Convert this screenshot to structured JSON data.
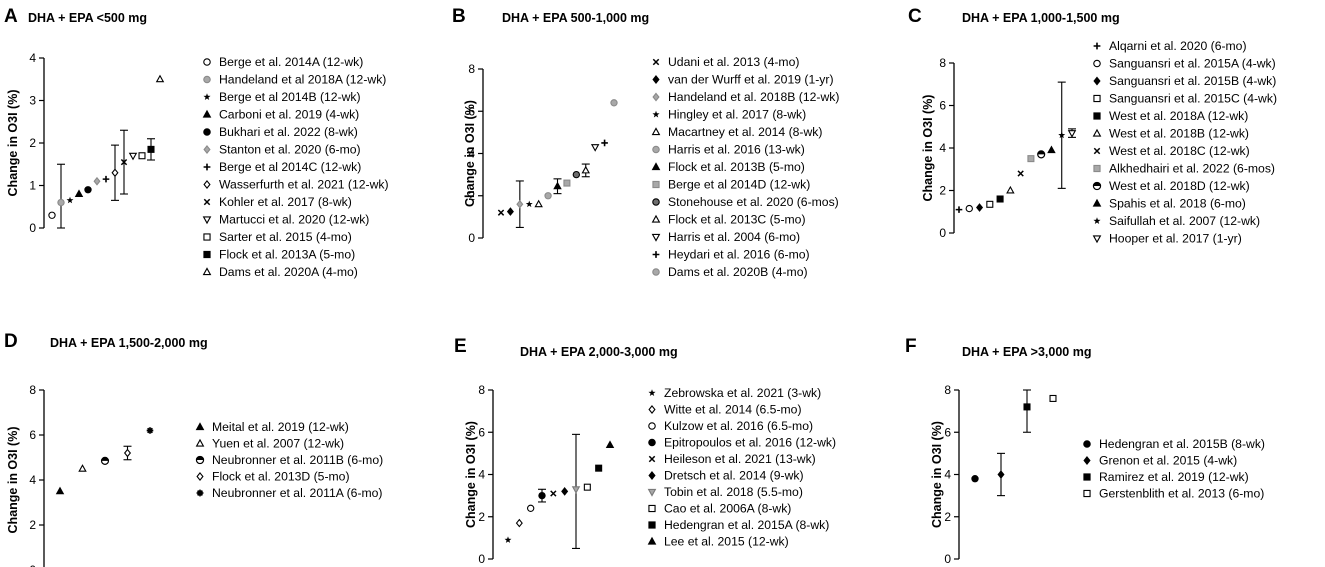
{
  "figure_domain": "forest-style scatter panels of omega-3 index change",
  "chart_data": [
    {
      "type": "scatter",
      "panel": "A",
      "title": "DHA + EPA <500 mg",
      "xlabel": "",
      "ylabel": "Change in O3I (%)",
      "ylim": [
        0,
        4
      ],
      "yticks": [
        0,
        1,
        2,
        3,
        4
      ],
      "legend_position": "right",
      "points": [
        {
          "label": "Berge et al. 2014A (12-wk)",
          "marker": "circle-open",
          "value": 0.3
        },
        {
          "label": "Handeland et al 2018A (12-wk)",
          "marker": "circle-gray",
          "value": 0.6,
          "error": [
            0.0,
            1.5
          ]
        },
        {
          "label": "Berge et al 2014B (12-wk)",
          "marker": "star",
          "value": 0.65
        },
        {
          "label": "Carboni et al. 2019 (4-wk)",
          "marker": "triangle",
          "value": 0.8
        },
        {
          "label": "Bukhari et al. 2022 (8-wk)",
          "marker": "circle",
          "value": 0.9
        },
        {
          "label": "Stanton et al. 2020 (6-mo)",
          "marker": "diamond-gray",
          "value": 1.1
        },
        {
          "label": "Berge et al 2014C (12-wk)",
          "marker": "plus",
          "value": 1.15
        },
        {
          "label": "Wasserfurth et al. 2021 (12-wk)",
          "marker": "diamond-open",
          "value": 1.3,
          "error": [
            0.65,
            1.95
          ]
        },
        {
          "label": "Kohler et al. 2017 (8-wk)",
          "marker": "x",
          "value": 1.55,
          "error": [
            0.8,
            2.3
          ]
        },
        {
          "label": "Martucci et al. 2020 (12-wk)",
          "marker": "triangle-down-open",
          "value": 1.7
        },
        {
          "label": "Sarter et al. 2015 (4-mo)",
          "marker": "square-open",
          "value": 1.7
        },
        {
          "label": "Flock et al. 2013A (5-mo)",
          "marker": "square",
          "value": 1.85,
          "error": [
            1.6,
            2.1
          ]
        },
        {
          "label": "Dams et al. 2020A (4-mo)",
          "marker": "triangle-open",
          "value": 3.5
        }
      ]
    },
    {
      "type": "scatter",
      "panel": "B",
      "title": "DHA + EPA 500-1,000 mg",
      "xlabel": "",
      "ylabel": "Change in O3I (%)",
      "ylim": [
        0,
        8
      ],
      "yticks": [
        0,
        2,
        4,
        6,
        8
      ],
      "legend_position": "right",
      "points": [
        {
          "label": "Udani et al. 2013 (4-mo)",
          "marker": "x",
          "value": 1.2
        },
        {
          "label": "van der Wurff et al. 2019 (1-yr)",
          "marker": "diamond",
          "value": 1.25
        },
        {
          "label": "Handeland et al. 2018B (12-wk)",
          "marker": "diamond-gray",
          "value": 1.6,
          "error": [
            0.5,
            2.7
          ]
        },
        {
          "label": "Hingley et al. 2017 (8-wk)",
          "marker": "star",
          "value": 1.6
        },
        {
          "label": "Macartney et al. 2014 (8-wk)",
          "marker": "triangle-open",
          "value": 1.6
        },
        {
          "label": "Harris et al. 2016 (13-wk)",
          "marker": "circle-gray",
          "value": 2.0
        },
        {
          "label": "Flock et al. 2013B (5-mo)",
          "marker": "triangle",
          "value": 2.45,
          "error": [
            2.1,
            2.8
          ]
        },
        {
          "label": "Berge et al 2014D (12-wk)",
          "marker": "square-gray",
          "value": 2.6
        },
        {
          "label": "Stonehouse et al. 2020 (6-mos)",
          "marker": "circle-darkgray",
          "value": 3.0
        },
        {
          "label": "Flock et al. 2013C (5-mo)",
          "marker": "triangle-open",
          "value": 3.2,
          "error": [
            2.9,
            3.5
          ]
        },
        {
          "label": "Harris et al. 2004 (6-mo)",
          "marker": "triangle-down-open",
          "value": 4.3
        },
        {
          "label": "Heydari et al. 2016 (6-mo)",
          "marker": "plus",
          "value": 4.5
        },
        {
          "label": "Dams et al. 2020B (4-mo)",
          "marker": "circle-gray",
          "value": 6.4
        }
      ]
    },
    {
      "type": "scatter",
      "panel": "C",
      "title": "DHA + EPA 1,000-1,500 mg",
      "xlabel": "",
      "ylabel": "Change in O3I (%)",
      "ylim": [
        0,
        8
      ],
      "yticks": [
        0,
        2,
        4,
        6,
        8
      ],
      "legend_position": "right",
      "points": [
        {
          "label": "Alqarni et al. 2020 (6-mo)",
          "marker": "plus",
          "value": 1.1
        },
        {
          "label": "Sanguansri et al. 2015A (4-wk)",
          "marker": "circle-open",
          "value": 1.15
        },
        {
          "label": "Sanguansri et al. 2015B (4-wk)",
          "marker": "diamond",
          "value": 1.2
        },
        {
          "label": "Sanguansri et al. 2015C (4-wk)",
          "marker": "square-open",
          "value": 1.35
        },
        {
          "label": "West et al. 2018A (12-wk)",
          "marker": "square",
          "value": 1.6
        },
        {
          "label": "West et al. 2018B (12-wk)",
          "marker": "triangle-open",
          "value": 2.0
        },
        {
          "label": "West et al. 2018C (12-wk)",
          "marker": "x",
          "value": 2.8
        },
        {
          "label": "Alkhedhairi et al. 2022 (6-mos)",
          "marker": "square-gray",
          "value": 3.5
        },
        {
          "label": "West et al. 2018D (12-wk)",
          "marker": "half-circle",
          "value": 3.7
        },
        {
          "label": "Spahis et al. 2018 (6-mo)",
          "marker": "triangle",
          "value": 3.9
        },
        {
          "label": "Saifullah et al. 2007 (12-wk)",
          "marker": "star",
          "value": 4.6,
          "error": [
            2.1,
            7.1
          ]
        },
        {
          "label": "Hooper et al. 2017 (1-yr)",
          "marker": "triangle-down-open",
          "value": 4.7,
          "error": [
            4.5,
            4.9
          ]
        }
      ]
    },
    {
      "type": "scatter",
      "panel": "D",
      "title": "DHA + EPA 1,500-2,000 mg",
      "xlabel": "",
      "ylabel": "Change in O3I (%)",
      "ylim": [
        0,
        8
      ],
      "yticks": [
        0,
        2,
        4,
        6,
        8
      ],
      "legend_position": "right",
      "points": [
        {
          "label": "Meital et al. 2019 (12-wk)",
          "marker": "triangle",
          "value": 3.5
        },
        {
          "label": "Yuen et al. 2007 (12-wk)",
          "marker": "triangle-open",
          "value": 4.5
        },
        {
          "label": "Neubronner et al. 2011B (6-mo)",
          "marker": "half-circle",
          "value": 4.85
        },
        {
          "label": "Flock et al. 2013D (5-mo)",
          "marker": "diamond-open",
          "value": 5.2,
          "error": [
            4.9,
            5.5
          ]
        },
        {
          "label": "Neubronner et al. 2011A (6-mo)",
          "marker": "asterisk",
          "value": 6.2
        }
      ]
    },
    {
      "type": "scatter",
      "panel": "E",
      "title": "DHA + EPA 2,000-3,000 mg",
      "xlabel": "",
      "ylabel": "Change in O3I (%)",
      "ylim": [
        0,
        8
      ],
      "yticks": [
        0,
        2,
        4,
        6,
        8
      ],
      "legend_position": "right",
      "points": [
        {
          "label": "Zebrowska et al. 2021 (3-wk)",
          "marker": "star",
          "value": 0.9
        },
        {
          "label": "Witte et al. 2014 (6.5-mo)",
          "marker": "diamond-open",
          "value": 1.7
        },
        {
          "label": "Kulzow et al. 2016 (6.5-mo)",
          "marker": "circle-open",
          "value": 2.4
        },
        {
          "label": "Epitropoulos et al. 2016 (12-wk)",
          "marker": "circle",
          "value": 3.0,
          "error": [
            2.7,
            3.3
          ]
        },
        {
          "label": "Heileson et al. 2021 (13-wk)",
          "marker": "x",
          "value": 3.1
        },
        {
          "label": "Dretsch et al. 2014 (9-wk)",
          "marker": "diamond",
          "value": 3.2
        },
        {
          "label": "Tobin et al. 2018 (5.5-mo)",
          "marker": "triangle-down-gray",
          "value": 3.3,
          "error": [
            0.5,
            5.9
          ]
        },
        {
          "label": "Cao et al. 2006A (8-wk)",
          "marker": "square-open",
          "value": 3.4
        },
        {
          "label": "Hedengran et al. 2015A (8-wk)",
          "marker": "square",
          "value": 4.3
        },
        {
          "label": "Lee et al. 2015 (12-wk)",
          "marker": "triangle",
          "value": 5.4
        }
      ]
    },
    {
      "type": "scatter",
      "panel": "F",
      "title": "DHA + EPA >3,000 mg",
      "xlabel": "",
      "ylabel": "Change in O3I (%)",
      "ylim": [
        0,
        8
      ],
      "yticks": [
        0,
        2,
        4,
        6,
        8
      ],
      "legend_position": "right",
      "points": [
        {
          "label": "Hedengran et al. 2015B (8-wk)",
          "marker": "circle",
          "value": 3.8
        },
        {
          "label": "Grenon et al. 2015 (4-wk)",
          "marker": "diamond",
          "value": 4.0,
          "error": [
            3.0,
            5.0
          ]
        },
        {
          "label": "Ramirez et al. 2019 (12-wk)",
          "marker": "square",
          "value": 7.2,
          "error": [
            6.0,
            8.0
          ]
        },
        {
          "label": "Gerstenblith et al. 2013 (6-mo)",
          "marker": "square-open",
          "value": 7.6
        }
      ]
    }
  ]
}
